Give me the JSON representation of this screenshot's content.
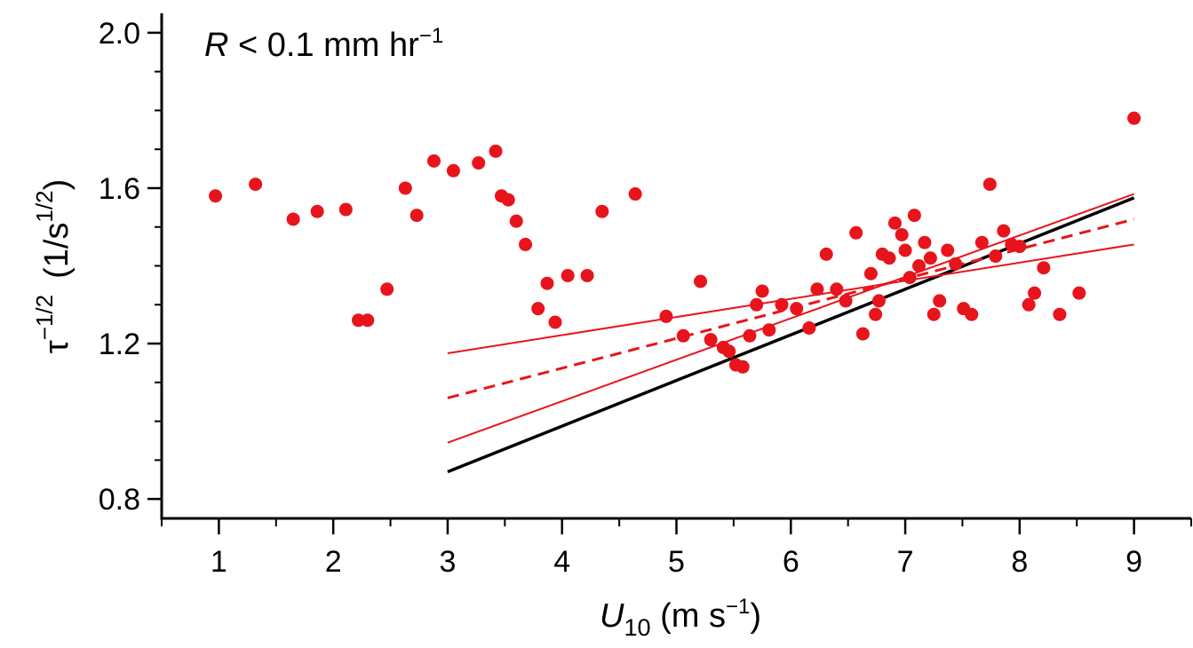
{
  "chart_data": {
    "type": "scatter",
    "annotation": {
      "var": "R",
      "op": " < 0.1 mm hr",
      "exp": "−1"
    },
    "xlabel": {
      "var": "U",
      "sub": "10",
      "unit": " (m s",
      "exp": "−1",
      "close": ")"
    },
    "ylabel": {
      "var": "τ",
      "exp": "−1/2",
      "unit": "(1/s",
      "unit_exp": "1/2",
      "close": ")"
    },
    "xlim": [
      0.5,
      9.5
    ],
    "ylim": [
      0.75,
      2.05
    ],
    "x_ticks": [
      1,
      2,
      3,
      4,
      5,
      6,
      7,
      8,
      9
    ],
    "x_tick_labels": [
      "1",
      "2",
      "3",
      "4",
      "5",
      "6",
      "7",
      "8",
      "9"
    ],
    "x_minor_ticks": [
      0.5,
      1.5,
      2.5,
      3.5,
      4.5,
      5.5,
      6.5,
      7.5,
      8.5,
      9.5
    ],
    "y_ticks": [
      0.8,
      1.2,
      1.6,
      2.0
    ],
    "y_tick_labels": [
      "0.8",
      "1.2",
      "1.6",
      "2.0"
    ],
    "y_minor_ticks": [
      0.9,
      1.0,
      1.1,
      1.3,
      1.4,
      1.5,
      1.7,
      1.8,
      1.9
    ],
    "grid": false,
    "colors": {
      "points": "#e8141b",
      "fit": "#e8141b",
      "reference": "#000000"
    },
    "points": [
      [
        0.97,
        1.58
      ],
      [
        1.32,
        1.61
      ],
      [
        1.65,
        1.52
      ],
      [
        1.86,
        1.54
      ],
      [
        2.11,
        1.545
      ],
      [
        2.22,
        1.26
      ],
      [
        2.3,
        1.26
      ],
      [
        2.47,
        1.34
      ],
      [
        2.63,
        1.6
      ],
      [
        2.73,
        1.53
      ],
      [
        2.88,
        1.67
      ],
      [
        3.05,
        1.645
      ],
      [
        3.27,
        1.665
      ],
      [
        3.42,
        1.695
      ],
      [
        3.47,
        1.58
      ],
      [
        3.53,
        1.57
      ],
      [
        3.6,
        1.515
      ],
      [
        3.68,
        1.455
      ],
      [
        3.79,
        1.29
      ],
      [
        3.87,
        1.355
      ],
      [
        3.94,
        1.255
      ],
      [
        4.05,
        1.375
      ],
      [
        4.22,
        1.375
      ],
      [
        4.35,
        1.54
      ],
      [
        4.64,
        1.585
      ],
      [
        4.91,
        1.27
      ],
      [
        5.06,
        1.22
      ],
      [
        5.21,
        1.36
      ],
      [
        5.3,
        1.21
      ],
      [
        5.41,
        1.19
      ],
      [
        5.46,
        1.18
      ],
      [
        5.52,
        1.145
      ],
      [
        5.58,
        1.14
      ],
      [
        5.64,
        1.22
      ],
      [
        5.7,
        1.3
      ],
      [
        5.75,
        1.335
      ],
      [
        5.81,
        1.235
      ],
      [
        5.92,
        1.3
      ],
      [
        6.05,
        1.29
      ],
      [
        6.16,
        1.24
      ],
      [
        6.23,
        1.34
      ],
      [
        6.31,
        1.43
      ],
      [
        6.4,
        1.34
      ],
      [
        6.48,
        1.31
      ],
      [
        6.57,
        1.485
      ],
      [
        6.63,
        1.225
      ],
      [
        6.7,
        1.38
      ],
      [
        6.74,
        1.275
      ],
      [
        6.77,
        1.31
      ],
      [
        6.8,
        1.43
      ],
      [
        6.86,
        1.42
      ],
      [
        6.91,
        1.51
      ],
      [
        6.97,
        1.48
      ],
      [
        7.0,
        1.44
      ],
      [
        7.04,
        1.37
      ],
      [
        7.08,
        1.53
      ],
      [
        7.12,
        1.4
      ],
      [
        7.17,
        1.46
      ],
      [
        7.22,
        1.42
      ],
      [
        7.25,
        1.275
      ],
      [
        7.3,
        1.31
      ],
      [
        7.37,
        1.44
      ],
      [
        7.44,
        1.405
      ],
      [
        7.51,
        1.29
      ],
      [
        7.58,
        1.275
      ],
      [
        7.67,
        1.46
      ],
      [
        7.74,
        1.61
      ],
      [
        7.79,
        1.425
      ],
      [
        7.86,
        1.49
      ],
      [
        7.93,
        1.455
      ],
      [
        8.0,
        1.45
      ],
      [
        8.08,
        1.3
      ],
      [
        8.13,
        1.33
      ],
      [
        8.21,
        1.395
      ],
      [
        8.35,
        1.275
      ],
      [
        8.52,
        1.33
      ],
      [
        9.0,
        1.78
      ]
    ],
    "lines": [
      {
        "x": [
          3.0,
          9.0
        ],
        "y": [
          0.87,
          1.575
        ],
        "style": "solid",
        "color": "#000000"
      },
      {
        "x": [
          3.0,
          9.0
        ],
        "y": [
          1.06,
          1.52
        ],
        "style": "dashed",
        "color": "#e8141b"
      },
      {
        "x": [
          3.0,
          9.0
        ],
        "y": [
          1.175,
          1.455
        ],
        "style": "solid",
        "color": "#e8141b"
      },
      {
        "x": [
          3.0,
          9.0
        ],
        "y": [
          0.945,
          1.585
        ],
        "style": "solid",
        "color": "#e8141b"
      }
    ]
  }
}
